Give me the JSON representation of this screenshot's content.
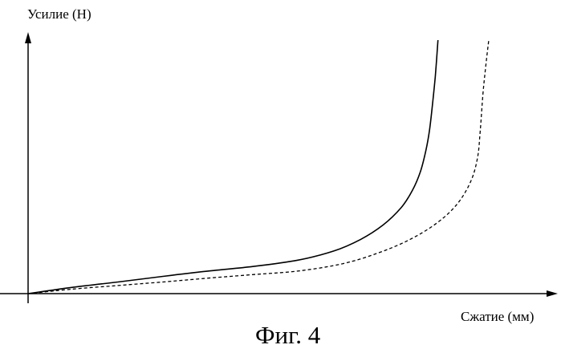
{
  "chart_data": {
    "type": "line",
    "xlabel": "Сжатие (мм)",
    "ylabel": "Усилие (Н)",
    "caption": "Фиг. 4",
    "ticks": "none",
    "grid": false,
    "legend": "none",
    "units": "relative (axes show no ticks; values are fractions of the plotted range)",
    "xlim": [
      0,
      1
    ],
    "ylim": [
      0,
      1
    ],
    "series": [
      {
        "line_style": "solid",
        "color": "#000000",
        "points": [
          [
            0.0,
            0.0
          ],
          [
            0.1,
            0.025
          ],
          [
            0.2,
            0.046
          ],
          [
            0.3,
            0.068
          ],
          [
            0.4,
            0.089
          ],
          [
            0.5,
            0.107
          ],
          [
            0.6,
            0.132
          ],
          [
            0.68,
            0.168
          ],
          [
            0.74,
            0.214
          ],
          [
            0.79,
            0.271
          ],
          [
            0.83,
            0.339
          ],
          [
            0.855,
            0.407
          ],
          [
            0.873,
            0.482
          ],
          [
            0.885,
            0.564
          ],
          [
            0.893,
            0.643
          ],
          [
            0.9,
            0.75
          ],
          [
            0.906,
            0.857
          ],
          [
            0.912,
            1.0
          ]
        ]
      },
      {
        "line_style": "dashed",
        "color": "#000000",
        "points": [
          [
            0.0,
            0.0
          ],
          [
            0.1,
            0.018
          ],
          [
            0.2,
            0.032
          ],
          [
            0.3,
            0.046
          ],
          [
            0.4,
            0.061
          ],
          [
            0.5,
            0.075
          ],
          [
            0.6,
            0.089
          ],
          [
            0.7,
            0.118
          ],
          [
            0.78,
            0.161
          ],
          [
            0.85,
            0.214
          ],
          [
            0.91,
            0.279
          ],
          [
            0.955,
            0.354
          ],
          [
            0.985,
            0.443
          ],
          [
            1.0,
            0.536
          ],
          [
            1.006,
            0.643
          ],
          [
            1.012,
            0.786
          ],
          [
            1.018,
            0.893
          ],
          [
            1.025,
            1.0
          ]
        ]
      }
    ]
  }
}
